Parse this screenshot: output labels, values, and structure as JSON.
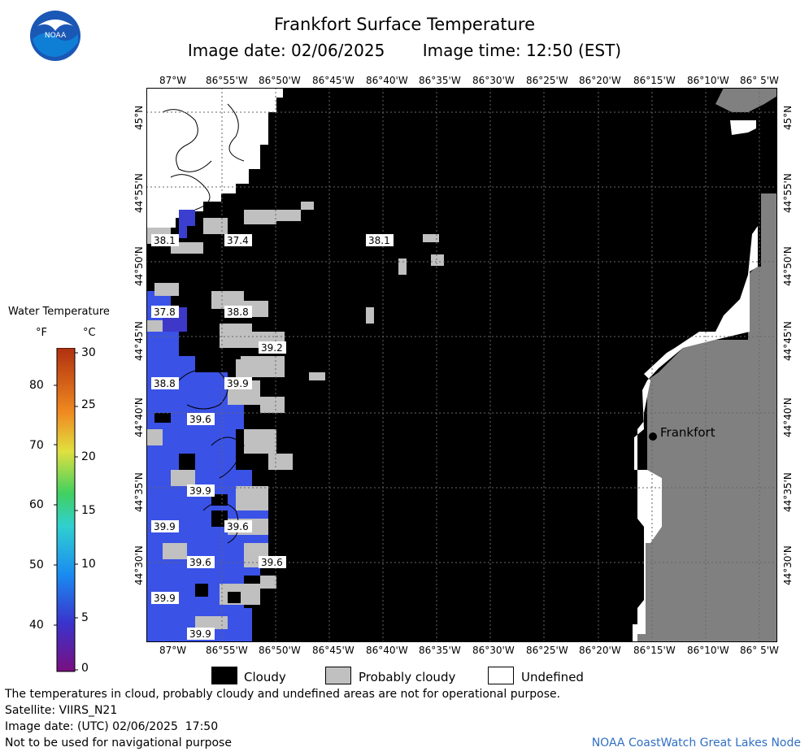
{
  "header": {
    "title": "Frankfort Surface Temperature",
    "image_date": "Image date: 02/06/2025",
    "image_time": "Image time: 12:50 (EST)"
  },
  "logo": {
    "text": "NOAA",
    "icon": "noaa-logo-icon"
  },
  "map": {
    "lon_labels": [
      "87°W",
      "86°55'W",
      "86°50'W",
      "86°45'W",
      "86°40'W",
      "86°35'W",
      "86°30'W",
      "86°25'W",
      "86°20'W",
      "86°15'W",
      "86°10'W",
      "86° 5'W"
    ],
    "lat_labels": [
      "45°N",
      "44°55'N",
      "44°50'N",
      "44°45'N",
      "44°40'N",
      "44°35'N",
      "44°30'N"
    ],
    "city": "Frankfort",
    "temperature_labels": [
      "38.1",
      "37.4",
      "38.1",
      "37.8",
      "38.8",
      "39.2",
      "38.8",
      "39.9",
      "39.6",
      "39.9",
      "39.9",
      "39.6",
      "39.6",
      "39.6",
      "39.9",
      "39.9"
    ],
    "colors": {
      "cloud": "#000000",
      "probably_cloudy": "#c0c0c0",
      "undefined": "#ffffff",
      "land": "#808080",
      "water_cold": "#3355ee",
      "water_mid": "#3f4fd6"
    }
  },
  "legend": {
    "title": "Water Temperature",
    "unit_f": "°F",
    "unit_c": "°C",
    "f_ticks": [
      "80",
      "70",
      "60",
      "50",
      "40"
    ],
    "c_ticks": [
      "30",
      "25",
      "20",
      "15",
      "10",
      "5",
      "0"
    ]
  },
  "key": {
    "cloudy": "Cloudy",
    "probably_cloudy": "Probably cloudy",
    "undefined": "Undefined"
  },
  "footer": {
    "note": "The temperatures in cloud, probably cloudy and undefined areas are not for operational purpose.",
    "satellite": "Satellite: VIIRS_N21",
    "utc_date": "Image date: (UTC) 02/06/2025  17:50",
    "nav": "Not to be used for navigational purpose",
    "credit": "NOAA CoastWatch Great Lakes Node"
  }
}
